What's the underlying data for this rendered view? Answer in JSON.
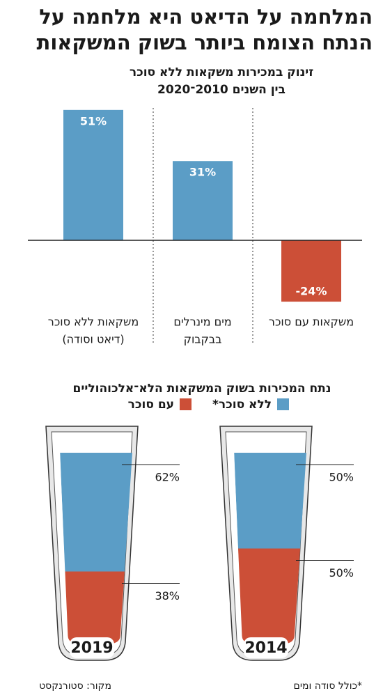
{
  "title": [
    "המלחמה על הדיאט היא מלחמה על",
    "הנתח הצומח ביותר בשוק המשקאות"
  ],
  "chart_data": [
    {
      "type": "bar",
      "title": [
        "זינוק במכירות משקאות ללא סוכר",
        "בין השנים 2010־2020"
      ],
      "categories": [
        [
          "משקאות ללא סוכר",
          "(דיאט וסודה)"
        ],
        [
          "מים מינרלים",
          "בבקבוק"
        ],
        [
          "משקאות עם סוכר"
        ]
      ],
      "values": [
        51,
        31,
        -24
      ],
      "value_labels": [
        "51%",
        "31%",
        "-24%"
      ],
      "colors": [
        "#5b9dc6",
        "#5b9dc6",
        "#cc4f37"
      ]
    },
    {
      "type": "glass",
      "title": "נתח המכירות בשוק המשקאות הלא־אלכוהוליים",
      "categories": [
        "2019",
        "2014"
      ],
      "series": [
        {
          "name": "ללא סוכר*",
          "color": "#5b9dc6",
          "values": [
            62,
            50
          ],
          "value_labels": [
            "62%",
            "50%"
          ]
        },
        {
          "name": "עם סוכר",
          "color": "#cc4f37",
          "values": [
            38,
            50
          ],
          "value_labels": [
            "38%",
            "50%"
          ]
        }
      ]
    }
  ],
  "footnote": "*כולל סודה ומים",
  "source": "מקור: סטורנקסט"
}
